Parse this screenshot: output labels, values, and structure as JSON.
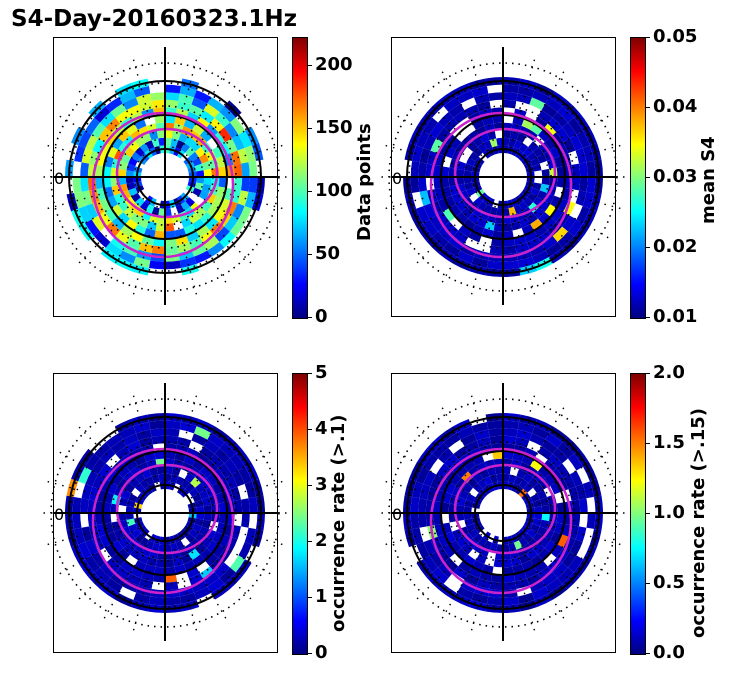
{
  "title": "S4-Day-20160323.1Hz",
  "chart_data": [
    {
      "type": "heatmap",
      "projection": "polar",
      "quantity": "Data points",
      "colorbar_label": "Data points",
      "colorbar_ticks": [
        "0",
        "50",
        "100",
        "150",
        "200"
      ],
      "colorbar_range": [
        0,
        222
      ],
      "colormap": "jet",
      "edge_label": "0"
    },
    {
      "type": "heatmap",
      "projection": "polar",
      "quantity": "mean S4",
      "colorbar_label": "mean S4",
      "colorbar_ticks": [
        "0.01",
        "0.02",
        "0.03",
        "0.04",
        "0.05"
      ],
      "colorbar_range": [
        0.01,
        0.05
      ],
      "colormap": "jet",
      "edge_label": "0"
    },
    {
      "type": "heatmap",
      "projection": "polar",
      "quantity": "occurrence rate (>.1)",
      "colorbar_label": "occurrence rate (>.1)",
      "colorbar_ticks": [
        "0",
        "1",
        "2",
        "3",
        "4",
        "5"
      ],
      "colorbar_range": [
        0,
        5
      ],
      "colormap": "jet",
      "edge_label": "0"
    },
    {
      "type": "heatmap",
      "projection": "polar",
      "quantity": "occurrence rate (>.15)",
      "colorbar_label": "occurrence rate (>.15)",
      "colorbar_ticks": [
        "0.0",
        "0.5",
        "1.0",
        "1.5",
        "2.0"
      ],
      "colorbar_range": [
        0.0,
        2.0
      ],
      "colormap": "jet",
      "edge_label": "0"
    }
  ],
  "colors": {
    "background_bins": "#00008f",
    "contour": "#cc22cc",
    "axes": "#000000"
  }
}
